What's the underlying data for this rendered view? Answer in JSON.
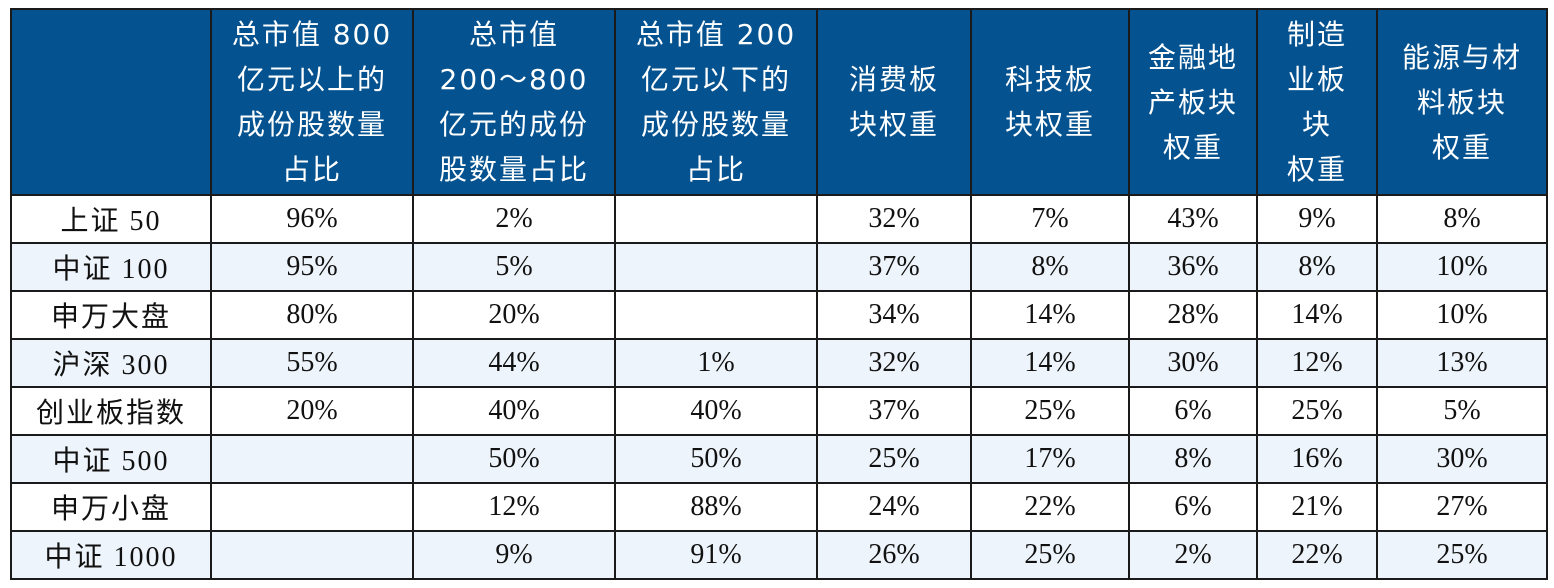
{
  "table": {
    "headers": [
      "",
      "总市值 800\n亿元以上的\n成份股数量\n占比",
      "总市值\n200～800\n亿元的成份\n股数量占比",
      "总市值 200\n亿元以下的\n成份股数量\n占比",
      "消费板\n块权重",
      "科技板\n块权重",
      "金融地\n产板块\n权重",
      "制造\n业板\n块\n权重",
      "能源与材\n料板块\n权重"
    ],
    "rows": [
      [
        "上证 50",
        "96%",
        "2%",
        "",
        "32%",
        "7%",
        "43%",
        "9%",
        "8%"
      ],
      [
        "中证 100",
        "95%",
        "5%",
        "",
        "37%",
        "8%",
        "36%",
        "8%",
        "10%"
      ],
      [
        "申万大盘",
        "80%",
        "20%",
        "",
        "34%",
        "14%",
        "28%",
        "14%",
        "10%"
      ],
      [
        "沪深 300",
        "55%",
        "44%",
        "1%",
        "32%",
        "14%",
        "30%",
        "12%",
        "13%"
      ],
      [
        "创业板指数",
        "20%",
        "40%",
        "40%",
        "37%",
        "25%",
        "6%",
        "25%",
        "5%"
      ],
      [
        "中证 500",
        "",
        "50%",
        "50%",
        "25%",
        "17%",
        "8%",
        "16%",
        "30%"
      ],
      [
        "申万小盘",
        "",
        "12%",
        "88%",
        "24%",
        "22%",
        "6%",
        "21%",
        "27%"
      ],
      [
        "中证 1000",
        "",
        "9%",
        "91%",
        "26%",
        "25%",
        "2%",
        "22%",
        "25%"
      ]
    ]
  },
  "colors": {
    "header_bg": "#04528f",
    "header_text": "#ffffff",
    "stripe_bg": "#eef4fb"
  }
}
